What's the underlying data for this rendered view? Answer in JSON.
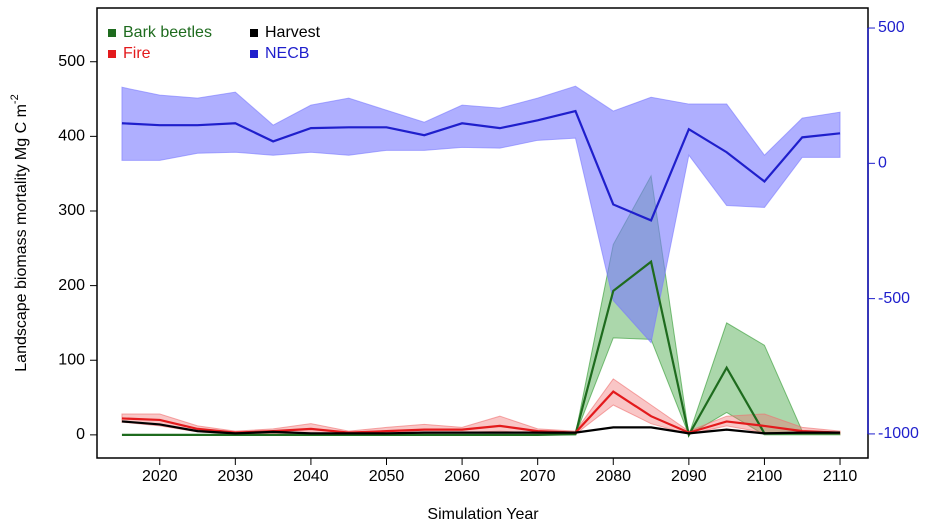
{
  "chart_data": {
    "type": "line",
    "x_label": "Simulation Year",
    "y_label": "Landscape biomass mortality Mg C m",
    "y_label_superscript": "-2",
    "x": [
      2015,
      2020,
      2025,
      2030,
      2035,
      2040,
      2045,
      2050,
      2055,
      2060,
      2065,
      2070,
      2075,
      2080,
      2085,
      2090,
      2095,
      2100,
      2105,
      2110
    ],
    "xlim": [
      2011.7,
      2113.7
    ],
    "xticks": [
      2020,
      2030,
      2040,
      2050,
      2060,
      2070,
      2080,
      2090,
      2100,
      2110
    ],
    "ylim": [
      -31,
      572
    ],
    "yticks": [
      0,
      100,
      200,
      300,
      400,
      500
    ],
    "y2lim": [
      -1089,
      574
    ],
    "y2ticks": [
      -1000,
      -500,
      0,
      500
    ],
    "series": [
      {
        "name": "Bark beetles",
        "color": "#1e6b1e",
        "band_color": "#2e9a2e",
        "values": [
          0,
          0,
          0,
          0,
          0,
          0,
          0,
          0,
          0,
          0,
          0,
          0,
          1,
          193,
          232,
          0,
          90,
          2,
          2,
          2
        ],
        "upper": [
          0,
          0,
          0,
          0,
          0,
          0,
          0,
          0,
          0,
          0,
          0,
          0,
          1,
          255,
          347,
          0,
          150,
          120,
          5,
          3
        ],
        "lower": [
          0,
          0,
          0,
          0,
          0,
          0,
          0,
          0,
          0,
          0,
          0,
          0,
          0,
          130,
          128,
          0,
          30,
          0,
          0,
          0
        ]
      },
      {
        "name": "Fire",
        "color": "#e31a1c",
        "band_color": "#f07070",
        "values": [
          22,
          20,
          8,
          3,
          5,
          8,
          3,
          5,
          7,
          7,
          12,
          5,
          3,
          58,
          25,
          3,
          18,
          12,
          5,
          3
        ],
        "upper": [
          28,
          28,
          12,
          5,
          8,
          15,
          5,
          10,
          14,
          10,
          25,
          8,
          5,
          75,
          40,
          5,
          25,
          28,
          10,
          5
        ],
        "lower": [
          17,
          12,
          4,
          1,
          2,
          2,
          1,
          1,
          2,
          3,
          5,
          2,
          1,
          40,
          15,
          1,
          12,
          3,
          1,
          1
        ]
      },
      {
        "name": "Harvest",
        "color": "#000000",
        "values": [
          18,
          14,
          5,
          2,
          4,
          2,
          2,
          2,
          3,
          3,
          3,
          3,
          3,
          10,
          10,
          2,
          7,
          2,
          3,
          3
        ]
      },
      {
        "name": "NECB",
        "color": "#1f1fcc",
        "band_color": "#7a7aff",
        "axis": "y2",
        "values": [
          148,
          141,
          141,
          148,
          81,
          130,
          133,
          133,
          104,
          148,
          130,
          159,
          193,
          -152,
          -211,
          126,
          41,
          -67,
          96,
          111
        ],
        "upper": [
          281,
          252,
          241,
          263,
          141,
          215,
          241,
          196,
          152,
          215,
          204,
          241,
          285,
          193,
          244,
          219,
          219,
          30,
          167,
          189
        ],
        "lower": [
          11,
          11,
          37,
          41,
          30,
          41,
          30,
          48,
          48,
          59,
          56,
          85,
          93,
          -507,
          -663,
          30,
          -156,
          -163,
          22,
          22
        ]
      }
    ]
  }
}
